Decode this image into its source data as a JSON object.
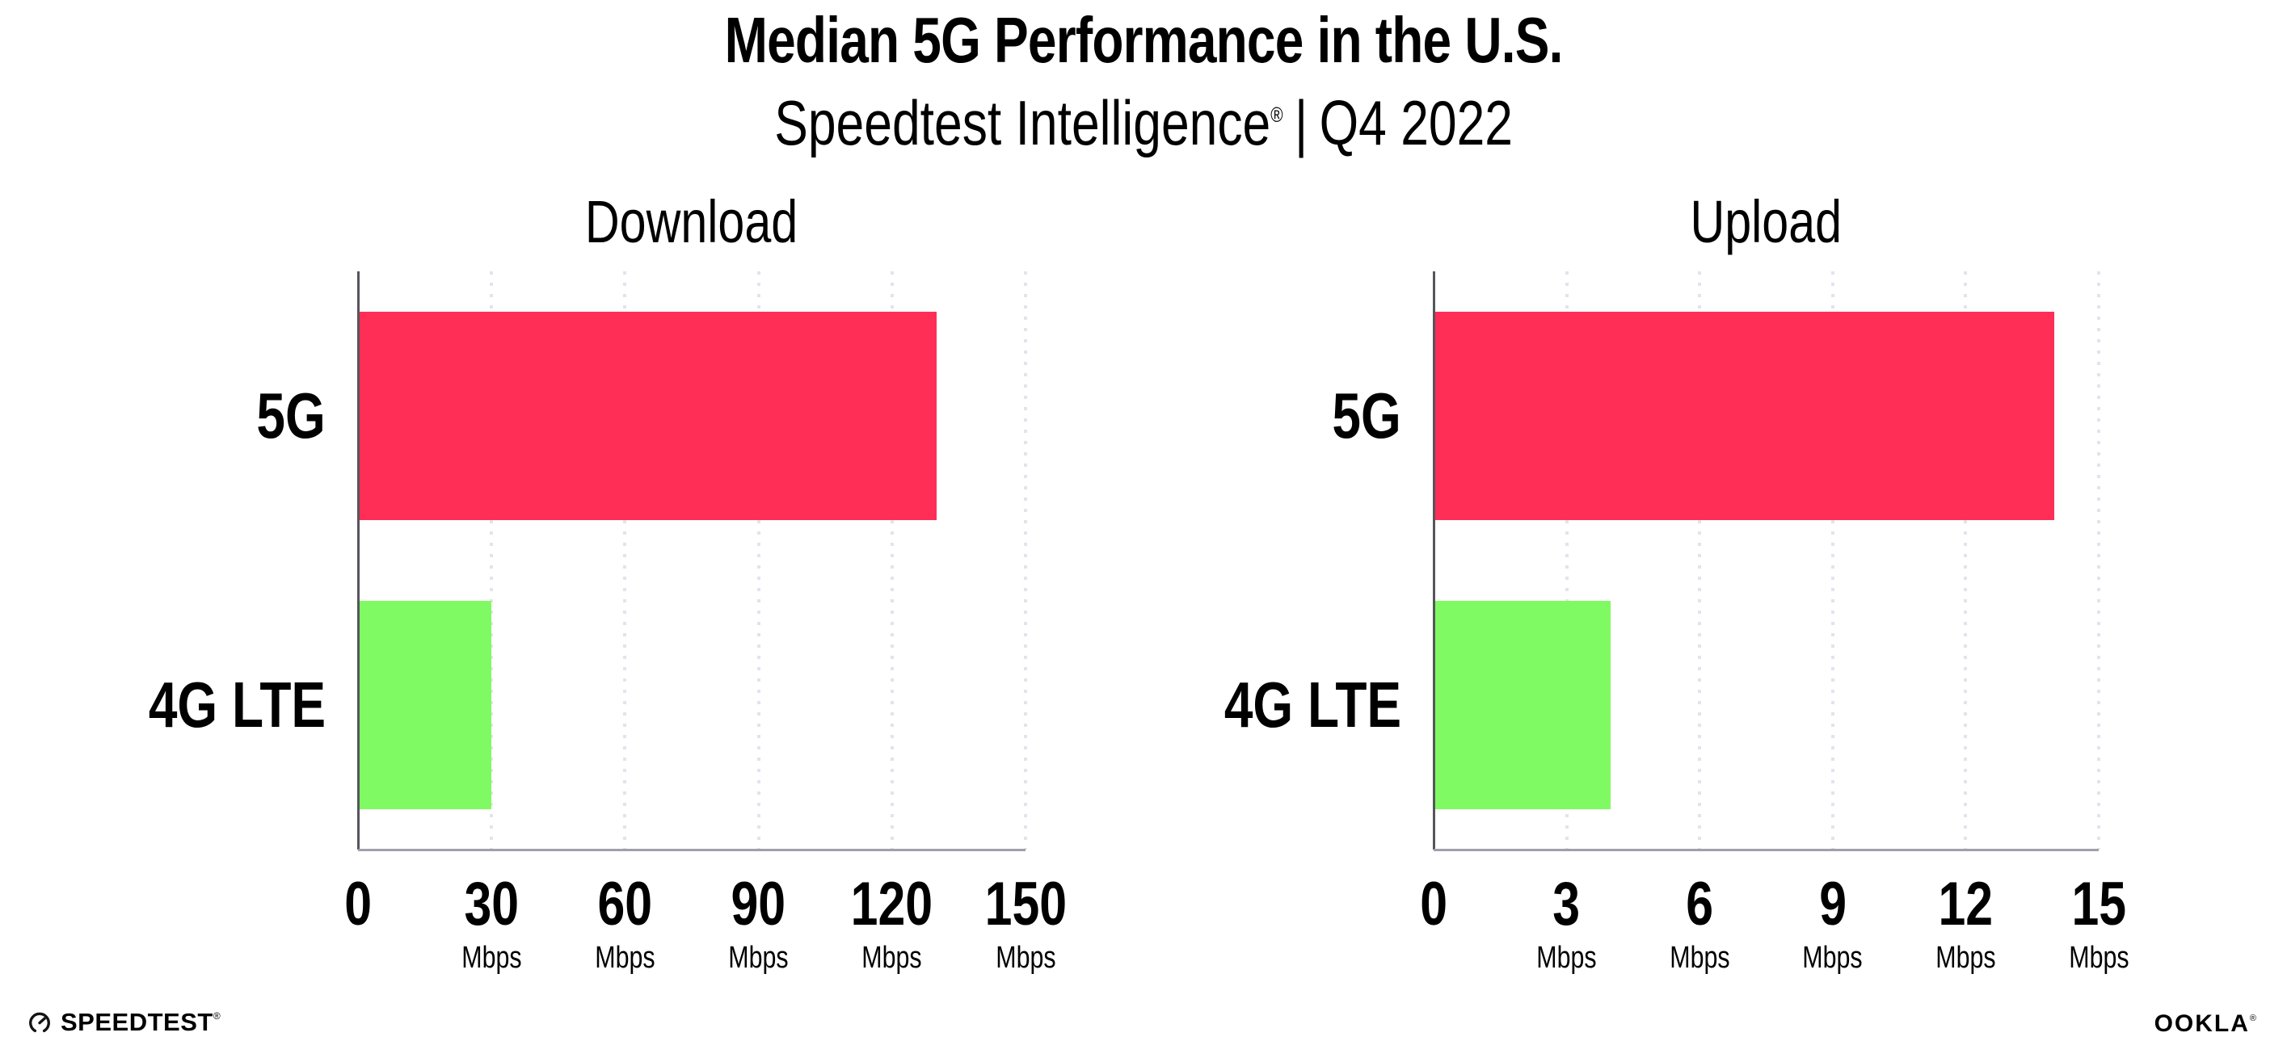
{
  "page": {
    "background": "#FFFFFF"
  },
  "header": {
    "title": "Median 5G Performance in the U.S.",
    "subtitle": {
      "brand": "Speedtest Intelligence",
      "registered_mark": "®",
      "separator": "|",
      "period": "Q4 2022"
    }
  },
  "chart_data": [
    {
      "type": "bar",
      "orientation": "horizontal",
      "title": "Download",
      "unit": "Mbps",
      "categories": [
        "5G",
        "4G LTE"
      ],
      "values": [
        130,
        30
      ],
      "ticks": [
        0,
        30,
        60,
        90,
        120,
        150
      ],
      "xlim": [
        0,
        150
      ],
      "xlabel": "",
      "ylabel": "",
      "legend": "none",
      "grid": "dotted-vertical",
      "bar_colors": [
        "#FF2E56",
        "#80FA62"
      ]
    },
    {
      "type": "bar",
      "orientation": "horizontal",
      "title": "Upload",
      "unit": "Mbps",
      "categories": [
        "5G",
        "4G LTE"
      ],
      "values": [
        14,
        4
      ],
      "ticks": [
        0,
        3,
        6,
        9,
        12,
        15
      ],
      "xlim": [
        0,
        15
      ],
      "xlabel": "",
      "ylabel": "",
      "legend": "none",
      "grid": "dotted-vertical",
      "bar_colors": [
        "#FF2E56",
        "#80FA62"
      ]
    }
  ],
  "footer": {
    "speedtest": {
      "icon": "speedtest-gauge-icon",
      "wordmark": "SPEEDTEST",
      "trademark": "®"
    },
    "ookla": {
      "wordmark": "OOKLA",
      "trademark": "®"
    }
  },
  "colors": {
    "bar_5g": "#FF2E56",
    "bar_4g_lte": "#80FA62",
    "gridline": "#E3E3ED",
    "y_axis": "#55555C",
    "x_axis": "#9FA0A8",
    "text": "#000000"
  }
}
